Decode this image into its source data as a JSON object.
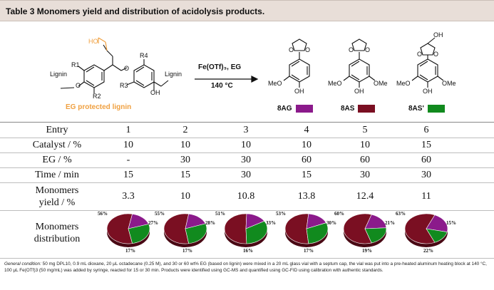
{
  "table_title": "Table 3 Monomers yield and distribution of acidolysis products.",
  "scheme": {
    "eg_protected_label": "EG protected lignin",
    "reagent_line1": "Fe(OTf)₃, EG",
    "reagent_line2": "140 °C",
    "structure_labels": {
      "ho": "HO",
      "r1": "R1",
      "r2": "R2",
      "r3": "R3",
      "r4": "R4",
      "lignin_left": "Lignin",
      "lignin_right": "Lignin",
      "o1": "O",
      "o2": "O",
      "o3": "O",
      "oh_reactant": "OH",
      "meo_8ag": "MeO",
      "oh_8ag": "OH",
      "o_8ag_a": "O",
      "o_8ag_b": "O",
      "meo_8as": "MeO",
      "ome_8as": "OMe",
      "oh_8as": "OH",
      "o_8as_a": "O",
      "o_8as_b": "O",
      "meo_8as2": "MeO",
      "ome_8as2": "OMe",
      "oh_8as2": "OH",
      "oh_8as2_top": "OH",
      "o_8as2_a": "O",
      "o_8as2_b": "O"
    },
    "products": [
      {
        "name": "8AG",
        "color": "#8b1a8b"
      },
      {
        "name": "8AS",
        "color": "#7a0f22"
      },
      {
        "name": "8AS'",
        "color": "#118a1e"
      }
    ]
  },
  "table": {
    "row_labels": {
      "entry": "Entry",
      "catalyst": "Catalyst / %",
      "eg": "EG / %",
      "time": "Time / min",
      "yield_line1": "Monomers",
      "yield_line2": "yield / %",
      "dist_line1": "Monomers",
      "dist_line2": "distribution"
    },
    "entries": [
      "1",
      "2",
      "3",
      "4",
      "5",
      "6"
    ],
    "catalyst": [
      "10",
      "10",
      "10",
      "10",
      "10",
      "15"
    ],
    "eg": [
      "-",
      "30",
      "30",
      "60",
      "60",
      "60"
    ],
    "time": [
      "15",
      "15",
      "30",
      "15",
      "30",
      "30"
    ],
    "yield": [
      "3.3",
      "10",
      "10.8",
      "13.8",
      "12.4",
      "11"
    ]
  },
  "chart_data": {
    "type": "pie",
    "series_names": [
      "8AS",
      "8AS'",
      "8AG"
    ],
    "colors": [
      "#7a0f22",
      "#118a1e",
      "#8b1a8b"
    ],
    "pies": [
      {
        "entry": "1",
        "values": [
          56,
          27,
          17
        ],
        "labels": [
          "56%",
          "27%",
          "17%"
        ]
      },
      {
        "entry": "2",
        "values": [
          55,
          28,
          17
        ],
        "labels": [
          "55%",
          "28%",
          "17%"
        ]
      },
      {
        "entry": "3",
        "values": [
          51,
          33,
          16
        ],
        "labels": [
          "51%",
          "33%",
          "16%"
        ]
      },
      {
        "entry": "4",
        "values": [
          53,
          30,
          17
        ],
        "labels": [
          "53%",
          "30%",
          "17%"
        ]
      },
      {
        "entry": "5",
        "values": [
          60,
          21,
          19
        ],
        "labels": [
          "60%",
          "21%",
          "19%"
        ]
      },
      {
        "entry": "6",
        "values": [
          63,
          15,
          22
        ],
        "labels": [
          "63%",
          "15%",
          "22%"
        ]
      }
    ]
  },
  "footnote": {
    "lead": "General condition:",
    "text": " 50 mg DPL10, 0.9 mL dioxane, 20 μL octadecane (0.25 M), and 30 or 60 wt% EG (based on lignin) were mixed in a 20 mL glass vial with a septum cap, the vial was put into a pre-heated aluminum heating block at 140 °C, 100 μL Fe(OTf)3 (50 mg/mL) was added by syringe, reacted for 15 or 30 min. Products were identified using GC-MS and quantified using GC-FID using calibration with authentic standards."
  }
}
